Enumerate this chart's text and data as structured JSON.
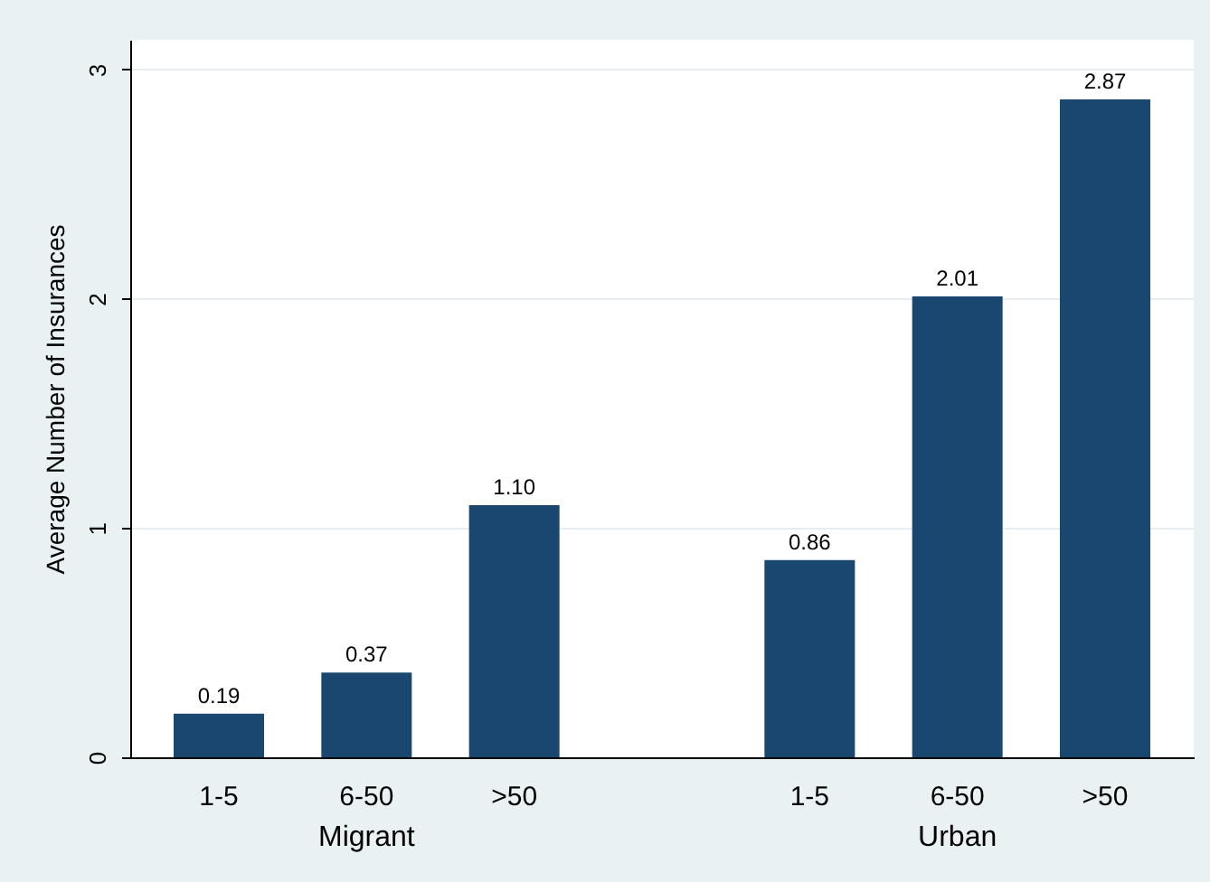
{
  "chart_data": {
    "type": "bar",
    "ylabel": "Average Number of Insurances",
    "categories": [
      "1-5",
      "6-50",
      ">50",
      null,
      "1-5",
      "6-50",
      ">50"
    ],
    "values": [
      0.19,
      0.37,
      1.1,
      null,
      0.86,
      2.01,
      2.87
    ],
    "color": "#1a476f",
    "ylim": [
      0,
      3.13
    ],
    "yticks": [
      0,
      1,
      2,
      3
    ],
    "grid": "y",
    "value_labels": [
      "0.19",
      "0.37",
      "1.10",
      null,
      "0.86",
      "2.01",
      "2.87"
    ],
    "annotations": [
      "Migrant",
      "Urban"
    ]
  }
}
